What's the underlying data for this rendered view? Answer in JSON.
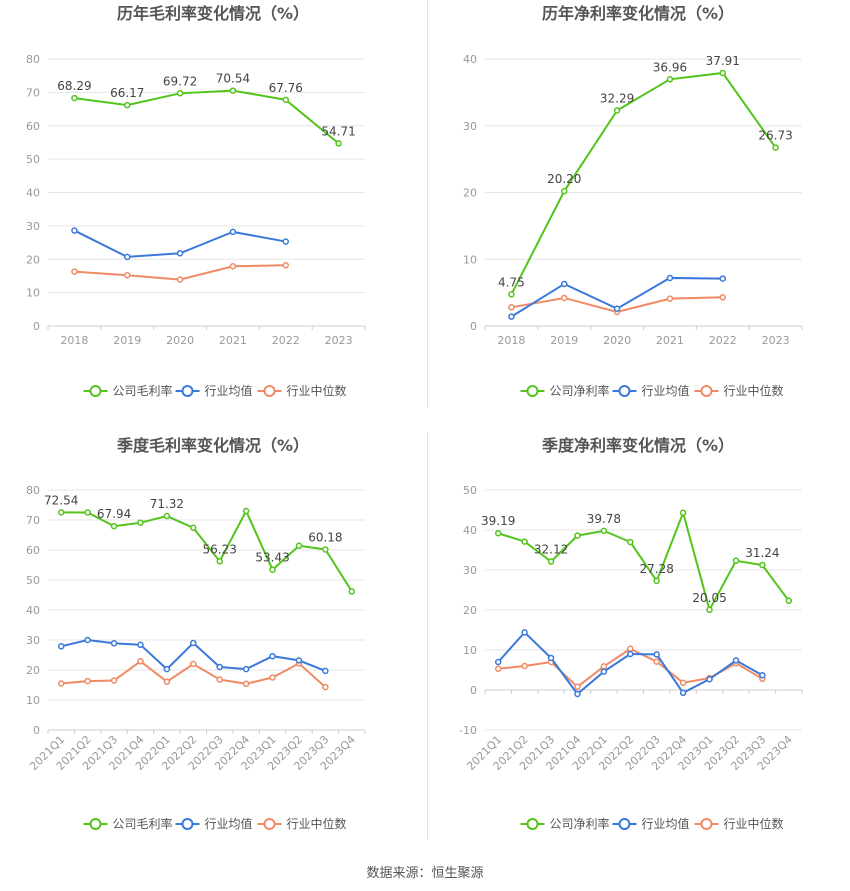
{
  "colors": {
    "company": "#52c41a",
    "industry_avg": "#3a78db",
    "industry_median": "#f08a64",
    "grid": "#e6e6e6",
    "axis_text": "#999999",
    "title_text": "#555555"
  },
  "source_text": "数据来源：恒生聚源",
  "chart_data": [
    {
      "type": "line",
      "title": "历年毛利率变化情况（%）",
      "categories": [
        "2018",
        "2019",
        "2020",
        "2021",
        "2022",
        "2023"
      ],
      "ylim": [
        0,
        80
      ],
      "yticks": [
        "0",
        "10",
        "20",
        "30",
        "40",
        "50",
        "60",
        "70",
        "80"
      ],
      "grid": true,
      "legend_position": "bottom",
      "series": [
        {
          "name": "公司毛利率",
          "values": [
            68.29,
            66.17,
            69.72,
            70.54,
            67.76,
            54.71
          ],
          "labels": [
            "68.29",
            "66.17",
            "69.72",
            "70.54",
            "67.76",
            "54.71"
          ]
        },
        {
          "name": "行业均值",
          "values": [
            28.6,
            20.7,
            21.8,
            28.2,
            25.3,
            null
          ]
        },
        {
          "name": "行业中位数",
          "values": [
            16.3,
            15.2,
            13.9,
            17.9,
            18.2,
            null
          ]
        }
      ]
    },
    {
      "type": "line",
      "title": "历年净利率变化情况（%）",
      "categories": [
        "2018",
        "2019",
        "2020",
        "2021",
        "2022",
        "2023"
      ],
      "ylim": [
        0,
        40
      ],
      "yticks": [
        "0",
        "10",
        "20",
        "30",
        "40"
      ],
      "grid": true,
      "legend_position": "bottom",
      "series": [
        {
          "name": "公司净利率",
          "values": [
            4.75,
            20.2,
            32.29,
            36.96,
            37.91,
            26.73
          ],
          "labels": [
            "4.75",
            "20.20",
            "32.29",
            "36.96",
            "37.91",
            "26.73"
          ]
        },
        {
          "name": "行业均值",
          "values": [
            1.4,
            6.3,
            2.6,
            7.2,
            7.1,
            null
          ]
        },
        {
          "name": "行业中位数",
          "values": [
            2.8,
            4.2,
            2.1,
            4.1,
            4.3,
            null
          ]
        }
      ]
    },
    {
      "type": "line",
      "title": "季度毛利率变化情况（%）",
      "categories": [
        "2021Q1",
        "2021Q2",
        "2021Q3",
        "2021Q4",
        "2022Q1",
        "2022Q2",
        "2022Q3",
        "2022Q4",
        "2023Q1",
        "2023Q2",
        "2023Q3",
        "2023Q4"
      ],
      "ylim": [
        0,
        80
      ],
      "yticks": [
        "0",
        "10",
        "20",
        "30",
        "40",
        "50",
        "60",
        "70",
        "80"
      ],
      "grid": true,
      "legend_position": "bottom",
      "rotated_xticks": true,
      "series": [
        {
          "name": "公司毛利率",
          "values": [
            72.54,
            72.5,
            67.94,
            69.1,
            71.32,
            67.4,
            56.23,
            73.0,
            53.43,
            61.4,
            60.18,
            46.2
          ],
          "labels": [
            "72.54",
            "",
            "67.94",
            "",
            "71.32",
            "",
            "56.23",
            "",
            "53.43",
            "",
            "60.18",
            ""
          ]
        },
        {
          "name": "行业均值",
          "values": [
            27.9,
            30.0,
            28.9,
            28.4,
            20.3,
            29.0,
            21.0,
            20.3,
            24.6,
            23.2,
            19.7,
            null
          ]
        },
        {
          "name": "行业中位数",
          "values": [
            15.5,
            16.3,
            16.5,
            22.9,
            16.1,
            22.0,
            16.8,
            15.4,
            17.5,
            22.2,
            14.3,
            null
          ]
        }
      ]
    },
    {
      "type": "line",
      "title": "季度净利率变化情况（%）",
      "categories": [
        "2021Q1",
        "2021Q2",
        "2021Q3",
        "2021Q4",
        "2022Q1",
        "2022Q2",
        "2022Q3",
        "2022Q4",
        "2023Q1",
        "2023Q2",
        "2023Q3",
        "2023Q4"
      ],
      "ylim": [
        -10,
        50
      ],
      "yticks": [
        "-10",
        "0",
        "10",
        "20",
        "30",
        "40",
        "50"
      ],
      "grid": true,
      "legend_position": "bottom",
      "rotated_xticks": true,
      "series": [
        {
          "name": "公司净利率",
          "values": [
            39.19,
            37.1,
            32.12,
            38.6,
            39.78,
            37.0,
            27.28,
            44.3,
            20.05,
            32.3,
            31.24,
            22.3
          ],
          "labels": [
            "39.19",
            "",
            "32.12",
            "",
            "39.78",
            "",
            "27.28",
            "",
            "20.05",
            "",
            "31.24",
            ""
          ]
        },
        {
          "name": "行业均值",
          "values": [
            7.0,
            14.4,
            8.0,
            -1.0,
            4.6,
            9.0,
            8.9,
            -0.7,
            2.7,
            7.4,
            3.7,
            null
          ]
        },
        {
          "name": "行业中位数",
          "values": [
            5.3,
            6.0,
            7.0,
            0.8,
            5.9,
            10.3,
            7.1,
            1.8,
            3.0,
            6.7,
            2.8,
            null
          ]
        }
      ]
    }
  ]
}
